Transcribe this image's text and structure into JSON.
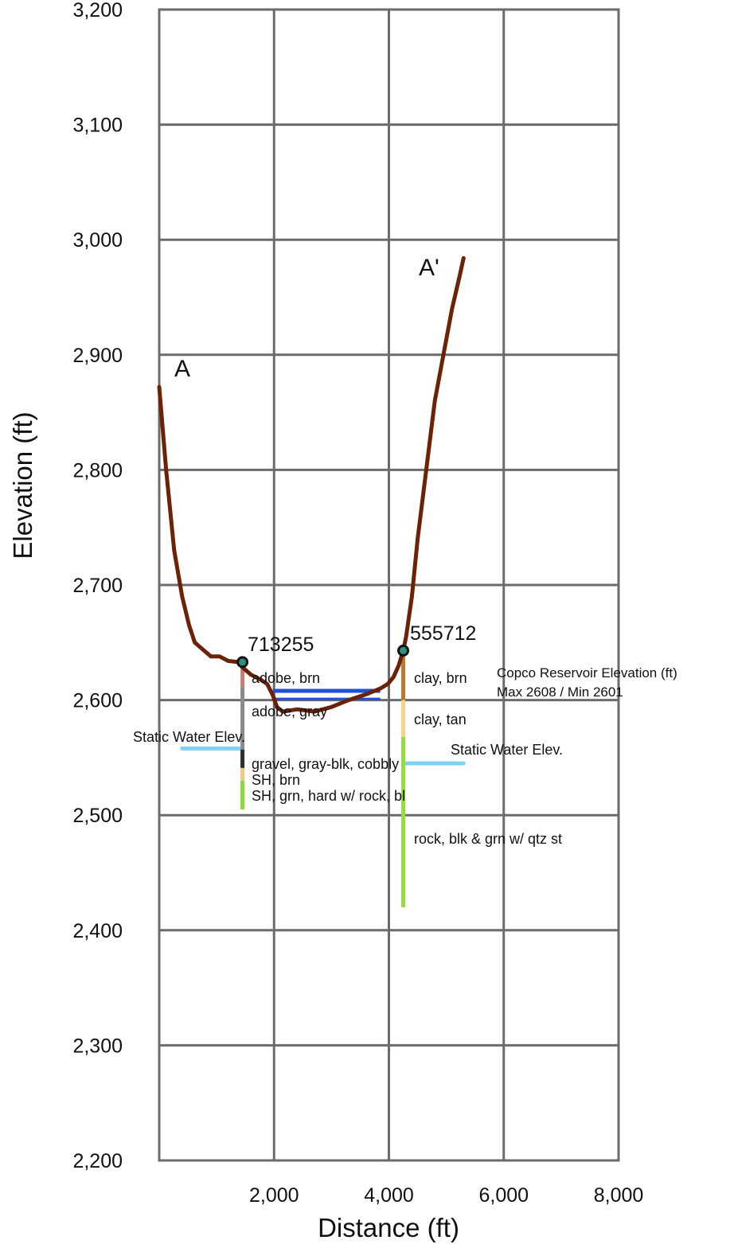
{
  "chart_data": {
    "type": "line",
    "title": "",
    "xlabel": "Distance (ft)",
    "ylabel": "Elevation (ft)",
    "xlim": [
      0,
      8000
    ],
    "ylim": [
      2200,
      3200
    ],
    "x_ticks": [
      2000,
      4000,
      6000,
      8000
    ],
    "x_tick_labels": [
      "2,000",
      "4,000",
      "6,000",
      "8,000"
    ],
    "y_ticks": [
      2200,
      2300,
      2400,
      2500,
      2600,
      2700,
      2800,
      2900,
      3000,
      3100,
      3200
    ],
    "y_tick_labels": [
      "2,200",
      "2,300",
      "2,400",
      "2,500",
      "2,600",
      "2,700",
      "2,800",
      "2,900",
      "3,000",
      "3,100",
      "3,200"
    ],
    "grid": true,
    "colors": {
      "profile": "#6b2206",
      "reservoir": "#1f4fd6",
      "static_water": "#7fd2f2",
      "well_marker": "#2b9380",
      "grid": "#6b6b6b"
    },
    "section_labels": {
      "start": "A",
      "end": "A'"
    },
    "profile": {
      "x": [
        0,
        120,
        260,
        400,
        520,
        620,
        780,
        900,
        1050,
        1200,
        1380,
        1460,
        1600,
        1760,
        1880,
        1980,
        2050,
        2150,
        2400,
        2700,
        3000,
        3300,
        3600,
        3850,
        3980,
        4080,
        4170,
        4250,
        4300,
        4400,
        4500,
        4650,
        4800,
        4950,
        5100,
        5230,
        5300
      ],
      "y": [
        2872,
        2800,
        2730,
        2690,
        2665,
        2650,
        2643,
        2638,
        2638,
        2634,
        2633,
        2628,
        2622,
        2618,
        2614,
        2604,
        2594,
        2590,
        2592,
        2590,
        2594,
        2600,
        2605,
        2610,
        2614,
        2620,
        2630,
        2643,
        2655,
        2690,
        2740,
        2800,
        2860,
        2900,
        2940,
        2968,
        2984
      ]
    },
    "reservoir_elevation": {
      "label_line1": "Copco Reservoir Elevation (ft)",
      "label_line2": "Max 2608 / Min 2601",
      "x": [
        1980,
        3850
      ],
      "max": 2608,
      "min": 2601
    },
    "static_water": [
      {
        "label": "Static Water Elev.",
        "x": [
          400,
          1450
        ],
        "y": 2558
      },
      {
        "label": "Static Water Elev.",
        "x": [
          4300,
          5300
        ],
        "y": 2545
      }
    ],
    "wells": [
      {
        "id": "713255",
        "x": 1450,
        "top": 2633,
        "layers": [
          {
            "label": "adobe, brn",
            "top": 2633,
            "bottom": 2612,
            "color": "#c97d72"
          },
          {
            "label": "adobe, gray",
            "top": 2612,
            "bottom": 2557,
            "color": "#8a8a8a"
          },
          {
            "label": "gravel, gray-blk, cobbly",
            "top": 2557,
            "bottom": 2541,
            "color": "#2d2d2d"
          },
          {
            "label": "SH, brn",
            "top": 2541,
            "bottom": 2530,
            "color": "#f5c77c"
          },
          {
            "label": "SH, grn, hard w/ rock, bl",
            "top": 2530,
            "bottom": 2505,
            "color": "#88d93e"
          }
        ]
      },
      {
        "id": "555712",
        "x": 4250,
        "top": 2643,
        "layers": [
          {
            "label": "clay, brn",
            "top": 2643,
            "bottom": 2600,
            "color": "#b87a2c"
          },
          {
            "label": "clay, tan",
            "top": 2600,
            "bottom": 2568,
            "color": "#f8d08f"
          },
          {
            "label": "rock, blk & grn w/ qtz st",
            "top": 2568,
            "bottom": 2420,
            "color": "#99dc3a"
          }
        ]
      }
    ]
  }
}
